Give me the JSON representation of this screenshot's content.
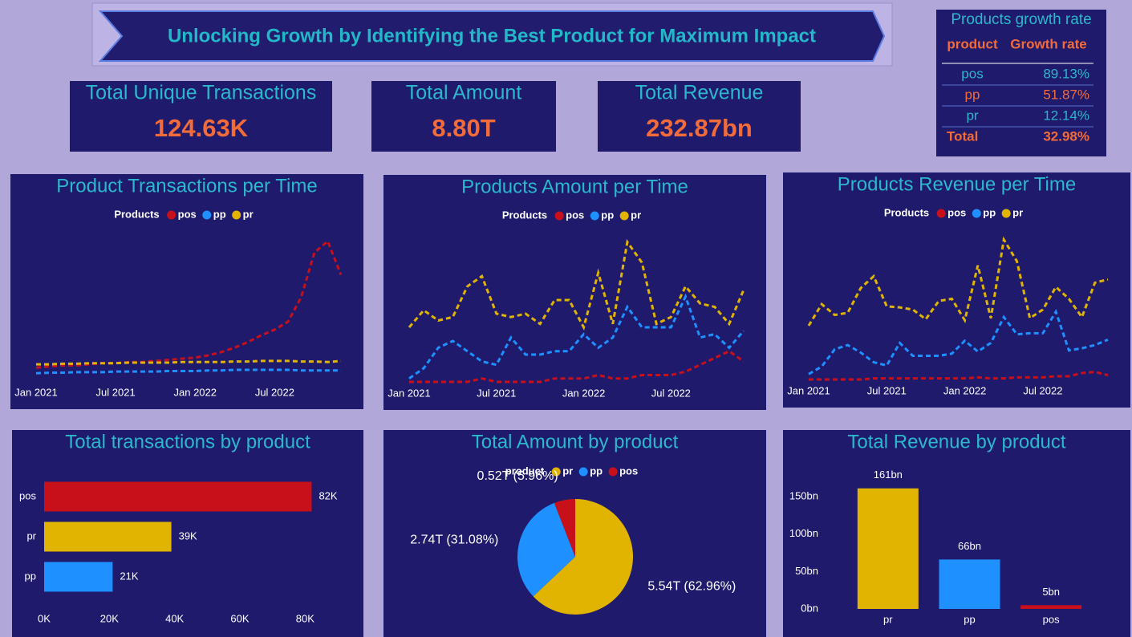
{
  "header": {
    "title": "Unlocking Growth by Identifying the Best Product for Maximum Impact"
  },
  "kpis": [
    {
      "label": "Total Unique Transactions",
      "value": "124.63K"
    },
    {
      "label": "Total Amount",
      "value": "8.80T"
    },
    {
      "label": "Total Revenue",
      "value": "232.87bn"
    }
  ],
  "growth_table": {
    "title": "Products growth rate",
    "columns": [
      "product",
      "Growth rate"
    ],
    "rows": [
      [
        "pos",
        "89.13%"
      ],
      [
        "pp",
        "51.87%"
      ],
      [
        "pr",
        "12.14%"
      ]
    ],
    "total": [
      "Total",
      "32.98%"
    ]
  },
  "chart_data": [
    {
      "type": "line",
      "title": "Product Transactions per Time",
      "legend_title": "Products",
      "line_style": "dashed",
      "categories": [
        "Jan 2021",
        null,
        null,
        null,
        null,
        null,
        "Jul 2021",
        null,
        null,
        null,
        null,
        null,
        "Jan 2022",
        null,
        null,
        null,
        null,
        null,
        "Jul 2022",
        null,
        null,
        null,
        null,
        null
      ],
      "series": [
        {
          "name": "pos",
          "color": "#c8101a",
          "values": [
            1200,
            1300,
            1400,
            1400,
            1500,
            1600,
            1600,
            1700,
            1700,
            1800,
            1900,
            2000,
            2100,
            2300,
            2600,
            3000,
            3500,
            4100,
            4600,
            5300,
            7500,
            11500,
            12500,
            9500
          ]
        },
        {
          "name": "pp",
          "color": "#1e90ff",
          "values": [
            700,
            750,
            750,
            800,
            800,
            800,
            850,
            850,
            850,
            850,
            900,
            900,
            900,
            950,
            950,
            1000,
            1000,
            1000,
            1000,
            1000,
            950,
            950,
            950,
            950
          ]
        },
        {
          "name": "pr",
          "color": "#e0b400",
          "values": [
            1500,
            1500,
            1550,
            1550,
            1600,
            1600,
            1600,
            1650,
            1650,
            1650,
            1650,
            1700,
            1700,
            1700,
            1700,
            1750,
            1750,
            1800,
            1800,
            1800,
            1750,
            1750,
            1700,
            1800
          ]
        }
      ]
    },
    {
      "type": "line",
      "title": "Products Amount per Time",
      "legend_title": "Products",
      "line_style": "dashed",
      "categories": [
        "Jan 2021",
        null,
        null,
        null,
        null,
        null,
        "Jul 2021",
        null,
        null,
        null,
        null,
        null,
        "Jan 2022",
        null,
        null,
        null,
        null,
        null,
        "Jul 2022",
        null,
        null,
        null,
        null,
        null
      ],
      "series": [
        {
          "name": "pos",
          "color": "#c8101a",
          "values": [
            0.0,
            0.0,
            0.0,
            0.0,
            0.0,
            0.01,
            0.0,
            0.0,
            0.0,
            0.0,
            0.01,
            0.01,
            0.01,
            0.02,
            0.01,
            0.01,
            0.02,
            0.02,
            0.02,
            0.03,
            0.05,
            0.07,
            0.09,
            0.06
          ]
        },
        {
          "name": "pp",
          "color": "#1e90ff",
          "values": [
            0.01,
            0.04,
            0.1,
            0.12,
            0.09,
            0.06,
            0.05,
            0.13,
            0.08,
            0.08,
            0.09,
            0.09,
            0.14,
            0.1,
            0.13,
            0.22,
            0.16,
            0.16,
            0.16,
            0.25,
            0.13,
            0.14,
            0.1,
            0.15
          ]
        },
        {
          "name": "pr",
          "color": "#e0b400",
          "values": [
            0.16,
            0.21,
            0.18,
            0.19,
            0.28,
            0.31,
            0.2,
            0.19,
            0.2,
            0.17,
            0.24,
            0.24,
            0.16,
            0.32,
            0.17,
            0.41,
            0.35,
            0.17,
            0.19,
            0.28,
            0.23,
            0.22,
            0.17,
            0.27
          ]
        }
      ]
    },
    {
      "type": "line",
      "title": "Products Revenue per Time",
      "legend_title": "Products",
      "line_style": "dashed",
      "categories": [
        "Jan 2021",
        null,
        null,
        null,
        null,
        null,
        "Jul 2021",
        null,
        null,
        null,
        null,
        null,
        "Jan 2022",
        null,
        null,
        null,
        null,
        null,
        "Jul 2022",
        null,
        null,
        null,
        null,
        null
      ],
      "series": [
        {
          "name": "pos",
          "color": "#c8101a",
          "values": [
            0.0,
            0.0,
            0.0,
            0.0,
            0.0,
            0.1,
            0.1,
            0.1,
            0.1,
            0.1,
            0.1,
            0.1,
            0.1,
            0.2,
            0.1,
            0.1,
            0.2,
            0.2,
            0.2,
            0.3,
            0.3,
            0.6,
            0.7,
            0.4
          ]
        },
        {
          "name": "pp",
          "color": "#1e90ff",
          "values": [
            0.5,
            1.2,
            2.8,
            3.2,
            2.5,
            1.6,
            1.3,
            3.4,
            2.2,
            2.2,
            2.2,
            2.4,
            3.6,
            2.6,
            3.4,
            5.8,
            4.2,
            4.3,
            4.3,
            6.3,
            2.7,
            2.9,
            3.2,
            3.7
          ]
        },
        {
          "name": "pr",
          "color": "#e0b400",
          "values": [
            5.0,
            7.0,
            6.0,
            6.2,
            8.5,
            9.6,
            6.8,
            6.7,
            6.5,
            5.6,
            7.3,
            7.5,
            5.5,
            10.6,
            5.7,
            13.0,
            11.0,
            5.7,
            6.5,
            8.6,
            7.5,
            5.8,
            9.0,
            9.3
          ]
        }
      ]
    },
    {
      "type": "bar",
      "horizontal": true,
      "title": "Total transactions by product",
      "categories": [
        "pos",
        "pr",
        "pp"
      ],
      "values": [
        82000,
        39000,
        21000
      ],
      "value_labels": [
        "82K",
        "39K",
        "21K"
      ],
      "colors": [
        "#c8101a",
        "#e0b400",
        "#1e90ff"
      ],
      "xlim": [
        0,
        90000
      ],
      "xticks": [
        {
          "value": 0,
          "label": "0K"
        },
        {
          "value": 20000,
          "label": "20K"
        },
        {
          "value": 40000,
          "label": "40K"
        },
        {
          "value": 60000,
          "label": "60K"
        },
        {
          "value": 80000,
          "label": "80K"
        }
      ]
    },
    {
      "type": "pie",
      "title": "Total Amount by product",
      "legend_title": "product",
      "categories": [
        "pr",
        "pp",
        "pos"
      ],
      "values": [
        5.54,
        2.74,
        0.52
      ],
      "value_labels": [
        "5.54T (62.96%)",
        "2.74T (31.08%)",
        "0.52T (5.96%)"
      ],
      "colors": [
        "#e0b400",
        "#1e90ff",
        "#c8101a"
      ]
    },
    {
      "type": "bar",
      "title": "Total Revenue by product",
      "categories": [
        "pr",
        "pp",
        "pos"
      ],
      "values": [
        161,
        66,
        5
      ],
      "value_labels": [
        "161bn",
        "66bn",
        "5bn"
      ],
      "colors": [
        "#e0b400",
        "#1e90ff",
        "#c8101a"
      ],
      "ylim": [
        0,
        180
      ],
      "yticks": [
        {
          "value": 0,
          "label": "0bn"
        },
        {
          "value": 50,
          "label": "50bn"
        },
        {
          "value": 100,
          "label": "100bn"
        },
        {
          "value": 150,
          "label": "150bn"
        }
      ]
    }
  ]
}
